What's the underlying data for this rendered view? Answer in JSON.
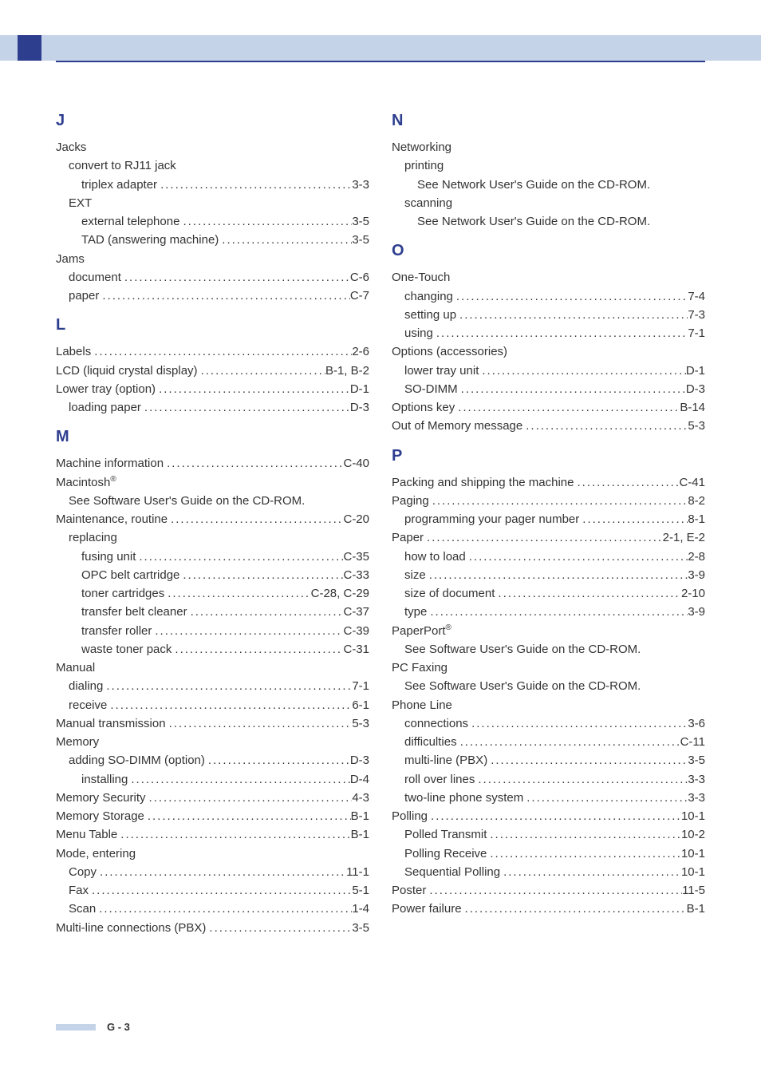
{
  "colors": {
    "header_bar": "#c5d3e8",
    "accent": "#2e3e8f",
    "text": "#333333",
    "background": "#ffffff"
  },
  "typography": {
    "section_letter_fontsize": 20,
    "body_fontsize": 15,
    "footer_fontsize": 13
  },
  "footer": "G - 3",
  "left": [
    {
      "type": "letter",
      "text": "J"
    },
    {
      "type": "plain",
      "indent": 0,
      "text": "Jacks"
    },
    {
      "type": "plain",
      "indent": 1,
      "text": "convert to RJ11 jack"
    },
    {
      "type": "entry",
      "indent": 2,
      "label": "triplex adapter",
      "page": "3-3"
    },
    {
      "type": "plain",
      "indent": 1,
      "text": "EXT"
    },
    {
      "type": "entry",
      "indent": 2,
      "label": "external telephone",
      "page": "3-5"
    },
    {
      "type": "entry",
      "indent": 2,
      "label": "TAD (answering machine)",
      "page": "3-5"
    },
    {
      "type": "plain",
      "indent": 0,
      "text": "Jams"
    },
    {
      "type": "entry",
      "indent": 1,
      "label": "document",
      "page": "C-6"
    },
    {
      "type": "entry",
      "indent": 1,
      "label": "paper",
      "page": "C-7"
    },
    {
      "type": "letter",
      "text": "L"
    },
    {
      "type": "entry",
      "indent": 0,
      "label": "Labels",
      "page": "2-6"
    },
    {
      "type": "entry",
      "indent": 0,
      "label": "LCD (liquid crystal display)",
      "page": "B-1, B-2"
    },
    {
      "type": "entry",
      "indent": 0,
      "label": "Lower tray (option)",
      "page": "D-1"
    },
    {
      "type": "entry",
      "indent": 1,
      "label": "loading paper",
      "page": "D-3"
    },
    {
      "type": "letter",
      "text": "M"
    },
    {
      "type": "entry",
      "indent": 0,
      "label": "Machine information",
      "page": "C-40"
    },
    {
      "type": "plain",
      "indent": 0,
      "text": "Macintosh",
      "sup": "®"
    },
    {
      "type": "plain",
      "indent": 1,
      "text": "See Software User's Guide on the CD-ROM."
    },
    {
      "type": "entry",
      "indent": 0,
      "label": "Maintenance, routine",
      "page": "C-20"
    },
    {
      "type": "plain",
      "indent": 1,
      "text": "replacing"
    },
    {
      "type": "entry",
      "indent": 2,
      "label": "fusing unit",
      "page": "C-35"
    },
    {
      "type": "entry",
      "indent": 2,
      "label": "OPC belt cartridge",
      "page": "C-33"
    },
    {
      "type": "entry",
      "indent": 2,
      "label": "toner cartridges",
      "page": "C-28, C-29"
    },
    {
      "type": "entry",
      "indent": 2,
      "label": "transfer belt cleaner",
      "page": "C-37"
    },
    {
      "type": "entry",
      "indent": 2,
      "label": "transfer roller",
      "page": "C-39"
    },
    {
      "type": "entry",
      "indent": 2,
      "label": "waste toner pack",
      "page": "C-31"
    },
    {
      "type": "plain",
      "indent": 0,
      "text": "Manual"
    },
    {
      "type": "entry",
      "indent": 1,
      "label": "dialing",
      "page": "7-1"
    },
    {
      "type": "entry",
      "indent": 1,
      "label": "receive",
      "page": "6-1"
    },
    {
      "type": "entry",
      "indent": 0,
      "label": "Manual transmission",
      "page": "5-3"
    },
    {
      "type": "plain",
      "indent": 0,
      "text": "Memory"
    },
    {
      "type": "entry",
      "indent": 1,
      "label": "adding SO-DIMM (option)",
      "page": "D-3"
    },
    {
      "type": "entry",
      "indent": 2,
      "label": "installing",
      "page": "D-4"
    },
    {
      "type": "entry",
      "indent": 0,
      "label": "Memory Security",
      "page": "4-3"
    },
    {
      "type": "entry",
      "indent": 0,
      "label": "Memory Storage",
      "page": "B-1"
    },
    {
      "type": "entry",
      "indent": 0,
      "label": "Menu Table",
      "page": "B-1"
    },
    {
      "type": "plain",
      "indent": 0,
      "text": "Mode, entering"
    },
    {
      "type": "entry",
      "indent": 1,
      "label": "Copy",
      "page": "11-1"
    },
    {
      "type": "entry",
      "indent": 1,
      "label": "Fax",
      "page": "5-1"
    },
    {
      "type": "entry",
      "indent": 1,
      "label": "Scan",
      "page": "1-4"
    },
    {
      "type": "entry",
      "indent": 0,
      "label": "Multi-line connections (PBX)",
      "page": "3-5"
    }
  ],
  "right": [
    {
      "type": "letter",
      "text": "N"
    },
    {
      "type": "plain",
      "indent": 0,
      "text": "Networking"
    },
    {
      "type": "plain",
      "indent": 1,
      "text": "printing"
    },
    {
      "type": "plain",
      "indent": 2,
      "text": "See Network User's Guide on the CD-ROM."
    },
    {
      "type": "plain",
      "indent": 1,
      "text": "scanning"
    },
    {
      "type": "plain",
      "indent": 2,
      "text": "See Network User's Guide on the CD-ROM."
    },
    {
      "type": "letter",
      "text": "O"
    },
    {
      "type": "plain",
      "indent": 0,
      "text": "One-Touch"
    },
    {
      "type": "entry",
      "indent": 1,
      "label": "changing",
      "page": "7-4"
    },
    {
      "type": "entry",
      "indent": 1,
      "label": "setting up",
      "page": "7-3"
    },
    {
      "type": "entry",
      "indent": 1,
      "label": "using",
      "page": "7-1"
    },
    {
      "type": "plain",
      "indent": 0,
      "text": "Options (accessories)"
    },
    {
      "type": "entry",
      "indent": 1,
      "label": "lower tray unit",
      "page": "D-1"
    },
    {
      "type": "entry",
      "indent": 1,
      "label": "SO-DIMM",
      "page": "D-3"
    },
    {
      "type": "entry",
      "indent": 0,
      "label": "Options key",
      "page": "B-14"
    },
    {
      "type": "entry",
      "indent": 0,
      "label": "Out of Memory message",
      "page": "5-3"
    },
    {
      "type": "letter",
      "text": "P"
    },
    {
      "type": "entry",
      "indent": 0,
      "label": "Packing and shipping the machine",
      "page": "C-41"
    },
    {
      "type": "entry",
      "indent": 0,
      "label": "Paging",
      "page": "8-2"
    },
    {
      "type": "entry",
      "indent": 1,
      "label": "programming your pager number",
      "page": "8-1"
    },
    {
      "type": "entry",
      "indent": 0,
      "label": "Paper",
      "page": "2-1, E-2"
    },
    {
      "type": "entry",
      "indent": 1,
      "label": "how to load",
      "page": "2-8"
    },
    {
      "type": "entry",
      "indent": 1,
      "label": "size",
      "page": "3-9"
    },
    {
      "type": "entry",
      "indent": 1,
      "label": "size of document",
      "page": "2-10"
    },
    {
      "type": "entry",
      "indent": 1,
      "label": "type",
      "page": "3-9"
    },
    {
      "type": "plain",
      "indent": 0,
      "text": "PaperPort",
      "sup": "®"
    },
    {
      "type": "plain",
      "indent": 1,
      "text": "See Software User's Guide on the CD-ROM."
    },
    {
      "type": "plain",
      "indent": 0,
      "text": "PC Faxing"
    },
    {
      "type": "plain",
      "indent": 1,
      "text": "See Software User's Guide on the CD-ROM."
    },
    {
      "type": "plain",
      "indent": 0,
      "text": "Phone Line"
    },
    {
      "type": "entry",
      "indent": 1,
      "label": "connections",
      "page": "3-6"
    },
    {
      "type": "entry",
      "indent": 1,
      "label": "difficulties",
      "page": "C-11"
    },
    {
      "type": "entry",
      "indent": 1,
      "label": "multi-line (PBX)",
      "page": "3-5"
    },
    {
      "type": "entry",
      "indent": 1,
      "label": "roll over lines",
      "page": "3-3"
    },
    {
      "type": "entry",
      "indent": 1,
      "label": "two-line phone system",
      "page": "3-3"
    },
    {
      "type": "entry",
      "indent": 0,
      "label": "Polling",
      "page": "10-1"
    },
    {
      "type": "entry",
      "indent": 1,
      "label": "Polled Transmit",
      "page": "10-2"
    },
    {
      "type": "entry",
      "indent": 1,
      "label": "Polling Receive",
      "page": "10-1"
    },
    {
      "type": "entry",
      "indent": 1,
      "label": "Sequential Polling",
      "page": "10-1"
    },
    {
      "type": "entry",
      "indent": 0,
      "label": "Poster",
      "page": "11-5"
    },
    {
      "type": "entry",
      "indent": 0,
      "label": "Power failure",
      "page": "B-1"
    }
  ]
}
